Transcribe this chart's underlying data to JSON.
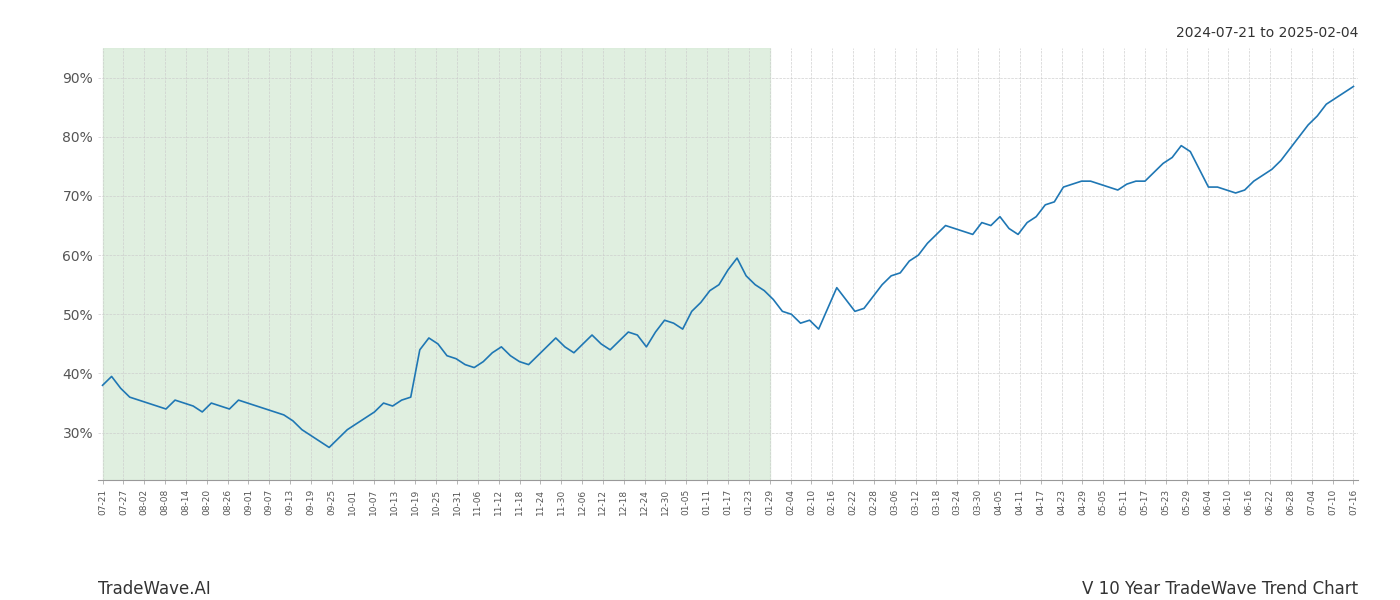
{
  "title": "2024-07-21 to 2025-02-04",
  "footer_left": "TradeWave.AI",
  "footer_right": "V 10 Year TradeWave Trend Chart",
  "line_color": "#1f77b4",
  "background_color": "#ffffff",
  "shaded_region_color": "#d4e9d4",
  "shaded_region_alpha": 0.7,
  "ylim": [
    22,
    95
  ],
  "yticks": [
    30,
    40,
    50,
    60,
    70,
    80,
    90
  ],
  "tick_labels": [
    "07-21",
    "07-27",
    "08-02",
    "08-08",
    "08-14",
    "08-20",
    "08-26",
    "09-01",
    "09-07",
    "09-13",
    "09-19",
    "09-25",
    "10-01",
    "10-07",
    "10-13",
    "10-19",
    "10-25",
    "10-31",
    "11-06",
    "11-12",
    "11-18",
    "11-24",
    "11-30",
    "12-06",
    "12-12",
    "12-18",
    "12-24",
    "12-30",
    "01-05",
    "01-11",
    "01-17",
    "01-23",
    "01-29",
    "02-04",
    "02-10",
    "02-16",
    "02-22",
    "02-28",
    "03-06",
    "03-12",
    "03-18",
    "03-24",
    "03-30",
    "04-05",
    "04-11",
    "04-17",
    "04-23",
    "04-29",
    "05-05",
    "05-11",
    "05-17",
    "05-23",
    "05-29",
    "06-04",
    "06-10",
    "06-16",
    "06-22",
    "06-28",
    "07-04",
    "07-10",
    "07-16"
  ],
  "values": [
    38.0,
    39.5,
    37.5,
    36.0,
    35.5,
    35.0,
    34.5,
    34.0,
    35.5,
    35.0,
    34.5,
    33.5,
    35.0,
    34.5,
    34.0,
    35.5,
    35.0,
    34.5,
    34.0,
    33.5,
    33.0,
    32.0,
    30.5,
    29.5,
    28.5,
    27.5,
    29.0,
    30.5,
    31.5,
    32.5,
    33.5,
    35.0,
    34.5,
    35.5,
    36.0,
    44.0,
    46.0,
    45.0,
    43.0,
    42.5,
    41.5,
    41.0,
    42.0,
    43.5,
    44.5,
    43.0,
    42.0,
    41.5,
    43.0,
    44.5,
    46.0,
    44.5,
    43.5,
    45.0,
    46.5,
    45.0,
    44.0,
    45.5,
    47.0,
    46.5,
    44.5,
    47.0,
    49.0,
    48.5,
    47.5,
    50.5,
    52.0,
    54.0,
    55.0,
    57.5,
    59.5,
    56.5,
    55.0,
    54.0,
    52.5,
    50.5,
    50.0,
    48.5,
    49.0,
    47.5,
    51.0,
    54.5,
    52.5,
    50.5,
    51.0,
    53.0,
    55.0,
    56.5,
    57.0,
    59.0,
    60.0,
    62.0,
    63.5,
    65.0,
    64.5,
    64.0,
    63.5,
    65.5,
    65.0,
    66.5,
    64.5,
    63.5,
    65.5,
    66.5,
    68.5,
    69.0,
    71.5,
    72.0,
    72.5,
    72.5,
    72.0,
    71.5,
    71.0,
    72.0,
    72.5,
    72.5,
    74.0,
    75.5,
    76.5,
    78.5,
    77.5,
    74.5,
    71.5,
    71.5,
    71.0,
    70.5,
    71.0,
    72.5,
    73.5,
    74.5,
    76.0,
    78.0,
    80.0,
    82.0,
    83.5,
    85.5,
    86.5,
    87.5,
    88.5
  ],
  "shaded_x_start_label": "07-21",
  "shaded_x_end_label": "01-29",
  "grid_color": "#cccccc",
  "tick_label_color": "#555555",
  "title_color": "#333333",
  "title_fontsize": 10,
  "footer_fontsize": 12
}
